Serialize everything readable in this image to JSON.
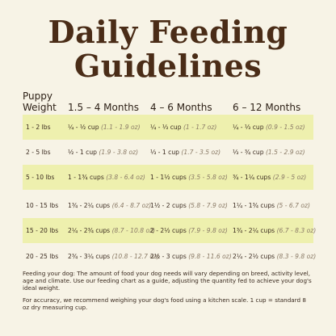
{
  "title": {
    "line1": "Daily Feeding",
    "line2": "Guidelines"
  },
  "table": {
    "header": {
      "puppy": "Puppy",
      "weight": "Weight",
      "col1": "1.5 – 4 Months",
      "col2": "4 – 6 Months",
      "col3": "6 – 12 Months"
    },
    "rows": [
      {
        "weight": "1 - 2 lbs",
        "c1": "¼ - ½ cup",
        "c1oz": "(1.1 - 1.9 oz)",
        "c2": "¼ - ⅓ cup",
        "c2oz": "(1 - 1.7 oz)",
        "c3": "¼ - ⅓ cup",
        "c3oz": "(0.9 - 1.5 oz)"
      },
      {
        "weight": "2 - 5 lbs",
        "c1": "½ - 1 cup",
        "c1oz": "(1.9 - 3.8 oz)",
        "c2": "⅓ - 1 cup",
        "c2oz": "(1.7 - 3.5 oz)",
        "c3": "⅓ - ¾ cup",
        "c3oz": "(1.5 - 2.9 oz)"
      },
      {
        "weight": "5 - 10 lbs",
        "c1": "1 - 1¾ cups",
        "c1oz": "(3.8 - 6.4 oz)",
        "c2": "1 - 1½ cups",
        "c2oz": "(3.5 - 5.8 oz)",
        "c3": "¾ - 1¼ cups",
        "c3oz": "(2.9 - 5 oz)"
      },
      {
        "weight": "10 - 15 lbs",
        "c1": "1¾ - 2¼ cups",
        "c1oz": "(6.4 - 8.7 oz)",
        "c2": "1½ - 2 cups",
        "c2oz": "(5.8 - 7.9 oz)",
        "c3": "1¼ - 1¾ cups",
        "c3oz": "(5 - 6.7 oz)"
      },
      {
        "weight": "15 - 20 lbs",
        "c1": "2¼ - 2¾ cups",
        "c1oz": "(8.7 - 10.8 oz)",
        "c2": "2 - 2½ cups",
        "c2oz": "(7.9 - 9.8 oz)",
        "c3": "1¾ - 2¼ cups",
        "c3oz": "(6.7 - 8.3 oz)"
      },
      {
        "weight": "20 - 25 lbs",
        "c1": "2¾ - 3¼ cups",
        "c1oz": "(10.8 - 12.7 oz)",
        "c2": "2½ - 3 cups",
        "c2oz": "(9.8 - 11.6 oz)",
        "c3": "2¼ - 2½ cups",
        "c3oz": "(8.3 - 9.8 oz)"
      }
    ]
  },
  "notes": {
    "note1": "Feeding your dog: The amount of food your dog needs will vary depending on breed, activity level, age and climate. Use our feeding chart as a guide, adjusting the quantity fed to achieve your dog's ideal weight.",
    "note2": "For accuracy, we recommend weighing your dog's food using a kitchen scale. 1 cup = standard 8 oz dry measuring cup."
  },
  "colors": {
    "title": "#4a2c17",
    "background": "#f7f3e6",
    "row_highlight": "#eef0ae"
  }
}
